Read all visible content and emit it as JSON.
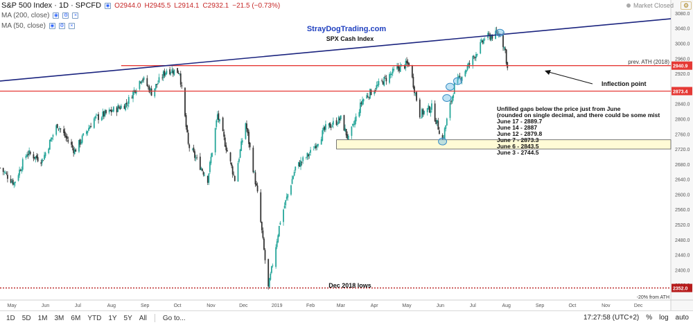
{
  "header": {
    "title": "S&P 500 Index · 1D · SPCFD",
    "ohlc": [
      "O2944.0",
      "H2945.5",
      "L2914.1",
      "C2932.1",
      "−21.5 (−0.73%)"
    ],
    "ma200": "MA (200, close)",
    "ma50": "MA (50, close)",
    "status": "Market Closed",
    "settings_icon": "gear-icon"
  },
  "annotations": {
    "brand": "StrayDogTrading.com",
    "subtitle": "SPX Cash Index",
    "prev_ath": "prev. ATH (2018)",
    "inflection": "Inflection point",
    "dec_lows": "Dec 2018 lows",
    "pct_from_ath": "-20% from ATH",
    "gaps_note": [
      "Unfilled gaps below the price just from June",
      "(rounded on single decimal, and there could be some mist",
      "June 17 - 2889.7",
      "June 14 - 2887",
      "June 12 - 2879.8",
      "June 7 - 2873.3",
      "June 6 - 2843.5",
      "June 3 - 2744.5"
    ]
  },
  "chart_data": {
    "type": "candlestick",
    "symbol": "S&P 500 Index",
    "timeframe": "1D",
    "ylim": [
      2320,
      3100
    ],
    "y_ticks": [
      2360,
      2400,
      2440,
      2480,
      2520,
      2560,
      2600,
      2640,
      2680,
      2720,
      2760,
      2800,
      2840,
      2880,
      2920,
      2960,
      3000,
      3040,
      3080
    ],
    "x_tick_labels": [
      "May",
      "Jun",
      "Jul",
      "Aug",
      "Sep",
      "Oct",
      "Nov",
      "Dec",
      "2019",
      "Feb",
      "Mar",
      "Apr",
      "May",
      "Jun",
      "Jul",
      "Aug",
      "Sep",
      "Oct",
      "Nov",
      "Dec"
    ],
    "x_range_dates": [
      "2018-04-20",
      "2019-12-31"
    ],
    "series": [
      {
        "name": "S&P 500 Index",
        "close_path": [
          [
            "2018-04-20",
            2670
          ],
          [
            "2018-05-03",
            2630
          ],
          [
            "2018-05-15",
            2710
          ],
          [
            "2018-05-29",
            2690
          ],
          [
            "2018-06-12",
            2785
          ],
          [
            "2018-06-28",
            2715
          ],
          [
            "2018-07-16",
            2800
          ],
          [
            "2018-08-01",
            2820
          ],
          [
            "2018-08-15",
            2840
          ],
          [
            "2018-08-29",
            2910
          ],
          [
            "2018-09-07",
            2870
          ],
          [
            "2018-09-21",
            2930
          ],
          [
            "2018-10-03",
            2925
          ],
          [
            "2018-10-11",
            2730
          ],
          [
            "2018-10-29",
            2640
          ],
          [
            "2018-11-07",
            2810
          ],
          [
            "2018-11-23",
            2640
          ],
          [
            "2018-12-03",
            2790
          ],
          [
            "2018-12-14",
            2600
          ],
          [
            "2018-12-24",
            2351
          ],
          [
            "2019-01-04",
            2530
          ],
          [
            "2019-01-18",
            2670
          ],
          [
            "2019-02-01",
            2710
          ],
          [
            "2019-02-15",
            2775
          ],
          [
            "2019-03-01",
            2800
          ],
          [
            "2019-03-08",
            2745
          ],
          [
            "2019-03-21",
            2850
          ],
          [
            "2019-04-05",
            2890
          ],
          [
            "2019-04-23",
            2935
          ],
          [
            "2019-05-03",
            2946
          ],
          [
            "2019-05-13",
            2812
          ],
          [
            "2019-05-24",
            2830
          ],
          [
            "2019-06-03",
            2744
          ],
          [
            "2019-06-14",
            2887
          ],
          [
            "2019-06-28",
            2945
          ],
          [
            "2019-07-12",
            3014
          ],
          [
            "2019-07-26",
            3026
          ],
          [
            "2019-07-31",
            2980
          ],
          [
            "2019-08-02",
            2932
          ]
        ]
      }
    ],
    "lines": [
      {
        "label": "prev. ATH (2018)",
        "kind": "horizontal",
        "value": 2940.9,
        "color": "#e53935"
      },
      {
        "label": "2873.4",
        "kind": "horizontal",
        "value": 2873.4,
        "color": "#e53935"
      },
      {
        "label": "Dec 2018 lows",
        "kind": "horizontal-dotted",
        "value": 2352.0,
        "color": "#b71c1c"
      },
      {
        "label": "trendline",
        "kind": "trend",
        "points": [
          [
            "2018-04-20",
            2900
          ],
          [
            "2019-12-31",
            3065
          ]
        ],
        "color": "#1a237e"
      }
    ],
    "price_badges": [
      {
        "label": "2940.9",
        "value": 2940.9,
        "color": "#e53935"
      },
      {
        "label": "2873.4",
        "value": 2873.4,
        "color": "#e53935"
      },
      {
        "label": "2352.0",
        "value": 2352.0,
        "color": "#b71c1c"
      }
    ],
    "gap_box_range": [
      2720,
      2744.5
    ],
    "highlights": [
      [
        "2019-06-03",
        2740
      ],
      [
        "2019-06-07",
        2855
      ],
      [
        "2019-06-10",
        2885
      ],
      [
        "2019-06-17",
        2900
      ],
      [
        "2019-07-26",
        3028
      ]
    ]
  },
  "toolbar": {
    "timeframes": [
      "1D",
      "5D",
      "1M",
      "3M",
      "6M",
      "YTD",
      "1Y",
      "5Y",
      "All"
    ],
    "goto": "Go to...",
    "clock": "17:27:58 (UTC+2)",
    "pct": "%",
    "log": "log",
    "auto": "auto"
  },
  "colors": {
    "up": "#26a69a",
    "down": "#333333",
    "blue_text": "#1e3fbf",
    "price_axis_bg": "#f7f7f7"
  }
}
